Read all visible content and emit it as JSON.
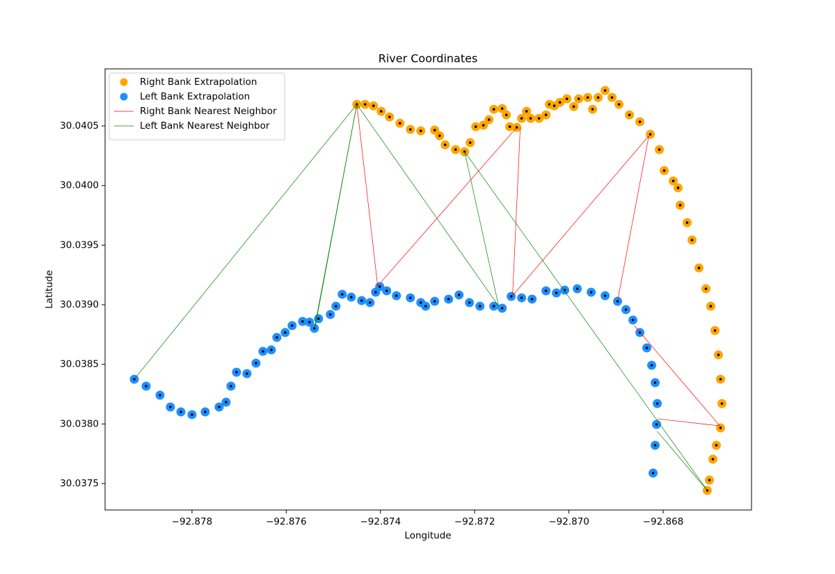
{
  "chart_data": {
    "type": "scatter",
    "title": "River Coordinates",
    "xlabel": "Longitude",
    "ylabel": "Latitude",
    "xlim": [
      -92.879845,
      -92.866125
    ],
    "ylim": [
      30.037278,
      30.040979
    ],
    "xticks": [
      {
        "value": -92.878,
        "label": "−92.878"
      },
      {
        "value": -92.876,
        "label": "−92.876"
      },
      {
        "value": -92.874,
        "label": "−92.874"
      },
      {
        "value": -92.872,
        "label": "−92.872"
      },
      {
        "value": -92.87,
        "label": "−92.870"
      },
      {
        "value": -92.868,
        "label": "−92.868"
      }
    ],
    "yticks": [
      30.0375,
      {
        "value": 30.038,
        "label": "30.0380"
      },
      30.0385,
      {
        "value": 30.039,
        "label": "30.0390"
      },
      30.0395,
      {
        "value": 30.04,
        "label": "30.0400"
      },
      30.0405
    ],
    "legend": "upper left",
    "series": [
      {
        "name": "Right Bank Extrapolation",
        "type": "scatter",
        "color": "#ffa500",
        "x": [
          -92.874502,
          -92.874325,
          -92.874148,
          -92.873985,
          -92.873808,
          -92.873587,
          -92.873365,
          -92.873144,
          -92.872849,
          -92.872745,
          -92.872627,
          -92.872406,
          -92.872214,
          -92.872096,
          -92.871978,
          -92.871815,
          -92.871697,
          -92.871594,
          -92.871417,
          -92.871328,
          -92.871255,
          -92.871107,
          -92.871004,
          -92.8709,
          -92.870812,
          -92.870635,
          -92.870487,
          -92.870413,
          -92.87031,
          -92.870192,
          -92.870044,
          -92.869897,
          -92.869793,
          -92.869601,
          -92.869498,
          -92.86938,
          -92.869232,
          -92.869085,
          -92.868937,
          -92.868716,
          -92.868494,
          -92.868273,
          -92.868081,
          -92.867978,
          -92.867786,
          -92.867683,
          -92.867638,
          -92.867491,
          -92.867387,
          -92.86724,
          -92.867092,
          -92.866989,
          -92.8669,
          -92.866827,
          -92.866782,
          -92.866753,
          -92.866782,
          -92.866871,
          -92.866945,
          -92.867018,
          -92.867063
        ],
        "y": [
          30.040681,
          30.040681,
          30.040669,
          30.040623,
          30.040576,
          30.040523,
          30.040471,
          30.040459,
          30.040465,
          30.040418,
          30.040342,
          30.040302,
          30.040284,
          30.04036,
          30.040494,
          30.040506,
          30.040553,
          30.04064,
          30.040646,
          30.040593,
          30.040494,
          30.040488,
          30.040564,
          30.040623,
          30.040564,
          30.040564,
          30.040593,
          30.040681,
          30.040669,
          30.040698,
          30.040728,
          30.040663,
          30.040728,
          30.040739,
          30.04064,
          30.040739,
          30.040798,
          30.040739,
          30.040681,
          30.040593,
          30.040535,
          30.04043,
          30.040302,
          30.040126,
          30.040039,
          30.039981,
          30.039835,
          30.039689,
          30.039543,
          30.039309,
          30.039134,
          30.038988,
          30.038784,
          30.03858,
          30.038375,
          30.038171,
          30.037967,
          30.037821,
          30.037704,
          30.037529,
          30.037442
        ]
      },
      {
        "name": "Left Bank Extrapolation",
        "type": "scatter",
        "color": "#1e90ff",
        "x": [
          -92.879225,
          -92.878974,
          -92.878679,
          -92.878458,
          -92.878236,
          -92.878,
          -92.87772,
          -92.877424,
          -92.877277,
          -92.877173,
          -92.877055,
          -92.876834,
          -92.876642,
          -92.876494,
          -92.876317,
          -92.876199,
          -92.876022,
          -92.875875,
          -92.875653,
          -92.875506,
          -92.875402,
          -92.875314,
          -92.875063,
          -92.874945,
          -92.874812,
          -92.87462,
          -92.874399,
          -92.874221,
          -92.874103,
          -92.874015,
          -92.873867,
          -92.873661,
          -92.873365,
          -92.873144,
          -92.873041,
          -92.872849,
          -92.872554,
          -92.872332,
          -92.872111,
          -92.871889,
          -92.871594,
          -92.871417,
          -92.871225,
          -92.871004,
          -92.870782,
          -92.870487,
          -92.870266,
          -92.870089,
          -92.869823,
          -92.869528,
          -92.869232,
          -92.868967,
          -92.86879,
          -92.868642,
          -92.868494,
          -92.868347,
          -92.868244,
          -92.86817,
          -92.868125,
          -92.86814,
          -92.86817,
          -92.868214
        ],
        "y": [
          30.038375,
          30.038317,
          30.038241,
          30.038142,
          30.038101,
          30.038078,
          30.038101,
          30.038142,
          30.038183,
          30.038317,
          30.038434,
          30.038422,
          30.03851,
          30.038609,
          30.038621,
          30.038726,
          30.038767,
          30.038825,
          30.03886,
          30.038854,
          30.038802,
          30.038883,
          30.038918,
          30.038988,
          30.039088,
          30.039064,
          30.039035,
          30.039018,
          30.039105,
          30.039152,
          30.039117,
          30.039076,
          30.039058,
          30.039018,
          30.038988,
          30.039029,
          30.039047,
          30.039082,
          30.039018,
          30.038988,
          30.038988,
          30.038971,
          30.03907,
          30.039058,
          30.039047,
          30.039117,
          30.039099,
          30.039123,
          30.039134,
          30.039105,
          30.039076,
          30.039029,
          30.038959,
          30.038872,
          30.038767,
          30.038638,
          30.038492,
          30.038346,
          30.038171,
          30.037996,
          30.037821,
          30.037588
        ]
      },
      {
        "name": "Right Bank Nearest Neighbor",
        "type": "segments",
        "color": "#ff0000",
        "segments": [
          {
            "x": [
              -92.874502,
              -92.874059
            ],
            "y": [
              30.040681,
              30.039158
            ]
          },
          {
            "x": [
              -92.874059,
              -92.871107
            ],
            "y": [
              30.039158,
              30.040488
            ]
          },
          {
            "x": [
              -92.871033,
              -92.871196
            ],
            "y": [
              30.040488,
              30.039076
            ]
          },
          {
            "x": [
              -92.871196,
              -92.868303
            ],
            "y": [
              30.039076,
              30.040418
            ]
          },
          {
            "x": [
              -92.868303,
              -92.868967
            ],
            "y": [
              30.040418,
              30.039035
            ]
          },
          {
            "x": [
              -92.868613,
              -92.866797
            ],
            "y": [
              30.038825,
              30.037984
            ]
          },
          {
            "x": [
              -92.868125,
              -92.866797
            ],
            "y": [
              30.038043,
              30.037984
            ]
          }
        ]
      },
      {
        "name": "Left Bank Nearest Neighbor",
        "type": "segments",
        "color": "#008000",
        "segments": [
          {
            "x": [
              -92.879225,
              -92.874502
            ],
            "y": [
              30.038375,
              30.040681
            ]
          },
          {
            "x": [
              -92.875387,
              -92.874502
            ],
            "y": [
              30.038813,
              30.040681
            ]
          },
          {
            "x": [
              -92.875402,
              -92.874502
            ],
            "y": [
              30.038802,
              30.040681
            ]
          },
          {
            "x": [
              -92.874502,
              -92.871491
            ],
            "y": [
              30.040681,
              30.038988
            ]
          },
          {
            "x": [
              -92.872214,
              -92.871491
            ],
            "y": [
              30.040284,
              30.038988
            ]
          },
          {
            "x": [
              -92.872214,
              -92.867063
            ],
            "y": [
              30.040284,
              30.037442
            ]
          },
          {
            "x": [
              -92.868125,
              -92.867063
            ],
            "y": [
              30.037938,
              30.037442
            ]
          }
        ]
      }
    ]
  }
}
